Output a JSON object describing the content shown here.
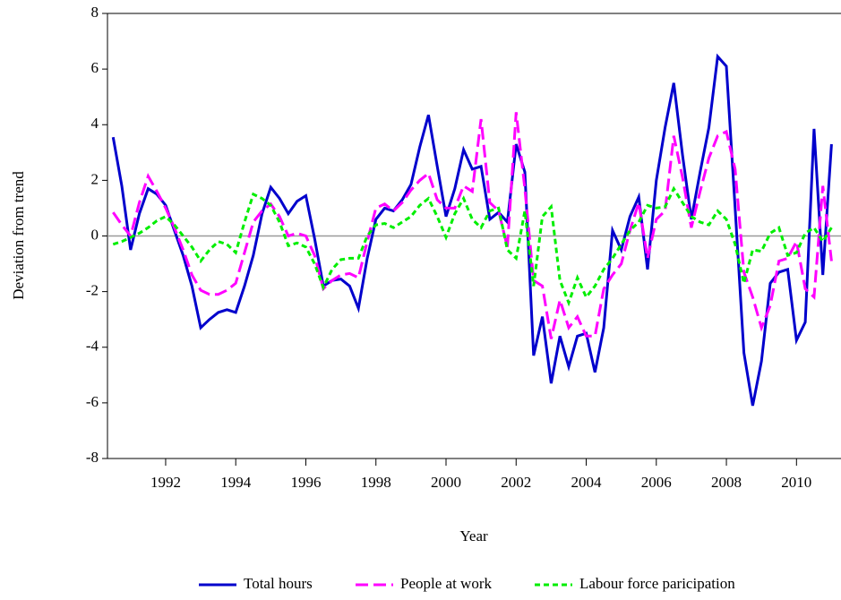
{
  "chart_data": {
    "type": "line",
    "y_label": "Deviation from trend",
    "x_label": "Year",
    "x": [
      1990.5,
      1990.75,
      1991,
      1991.25,
      1991.5,
      1991.75,
      1992,
      1992.25,
      1992.5,
      1992.75,
      1993,
      1993.25,
      1993.5,
      1993.75,
      1994,
      1994.25,
      1994.5,
      1994.75,
      1995,
      1995.25,
      1995.5,
      1995.75,
      1996,
      1996.25,
      1996.5,
      1996.75,
      1997,
      1997.25,
      1997.5,
      1997.75,
      1998,
      1998.25,
      1998.5,
      1998.75,
      1999,
      1999.25,
      1999.5,
      1999.75,
      2000,
      2000.25,
      2000.5,
      2000.75,
      2001,
      2001.25,
      2001.5,
      2001.75,
      2002,
      2002.25,
      2002.5,
      2002.75,
      2003,
      2003.25,
      2003.5,
      2003.75,
      2004,
      2004.25,
      2004.5,
      2004.75,
      2005,
      2005.25,
      2005.5,
      2005.75,
      2006,
      2006.25,
      2006.5,
      2006.75,
      2007,
      2007.25,
      2007.5,
      2007.75,
      2008,
      2008.25,
      2008.5,
      2008.75,
      2009,
      2009.25,
      2009.5,
      2009.75,
      2010,
      2010.25,
      2010.5,
      2010.75,
      2011
    ],
    "series": [
      {
        "name": "Total hours",
        "color": "#0000cc",
        "style": "solid",
        "values": [
          3.55,
          1.8,
          -0.5,
          0.8,
          1.7,
          1.5,
          1.1,
          0.2,
          -0.7,
          -1.8,
          -3.3,
          -3.0,
          -2.75,
          -2.65,
          -2.75,
          -1.8,
          -0.7,
          0.8,
          1.75,
          1.35,
          0.8,
          1.25,
          1.45,
          -0.1,
          -1.8,
          -1.6,
          -1.55,
          -1.8,
          -2.6,
          -0.8,
          0.6,
          1.0,
          0.9,
          1.3,
          1.85,
          3.2,
          4.35,
          2.5,
          0.7,
          1.7,
          3.1,
          2.4,
          2.5,
          0.6,
          0.85,
          0.5,
          3.3,
          2.3,
          -4.3,
          -2.9,
          -5.3,
          -3.6,
          -4.7,
          -3.6,
          -3.5,
          -4.9,
          -3.3,
          0.2,
          -0.5,
          0.7,
          1.4,
          -1.2,
          2.0,
          3.9,
          5.5,
          2.9,
          0.6,
          2.3,
          3.9,
          6.45,
          6.1,
          1.0,
          -4.2,
          -6.1,
          -4.5,
          -1.7,
          -1.3,
          -1.2,
          -3.75,
          -3.1,
          3.85,
          -1.4,
          3.3
        ]
      },
      {
        "name": "People at work",
        "color": "#ff00ff",
        "style": "dashed",
        "values": [
          0.85,
          0.4,
          0.0,
          1.2,
          2.15,
          1.6,
          1.0,
          0.3,
          -0.5,
          -1.4,
          -1.95,
          -2.1,
          -2.1,
          -1.95,
          -1.7,
          -0.6,
          0.5,
          0.9,
          1.15,
          0.7,
          0.0,
          0.1,
          0.0,
          -0.7,
          -1.9,
          -1.6,
          -1.4,
          -1.35,
          -1.5,
          -0.2,
          1.0,
          1.15,
          0.9,
          1.2,
          1.65,
          2.0,
          2.25,
          1.3,
          1.0,
          1.0,
          1.8,
          1.6,
          4.2,
          1.2,
          0.9,
          -0.4,
          4.45,
          1.7,
          -1.6,
          -1.8,
          -3.7,
          -2.3,
          -3.3,
          -2.9,
          -3.6,
          -3.6,
          -1.9,
          -1.4,
          -1.0,
          0.2,
          1.2,
          -0.8,
          0.6,
          0.9,
          3.6,
          2.1,
          0.3,
          1.6,
          2.8,
          3.6,
          3.75,
          2.4,
          -1.3,
          -2.2,
          -3.3,
          -2.5,
          -0.9,
          -0.8,
          -0.2,
          -1.9,
          -2.2,
          1.8,
          -0.9
        ]
      },
      {
        "name": "Labour force paricipation",
        "color": "#00ee00",
        "style": "dotted",
        "values": [
          -0.3,
          -0.2,
          -0.05,
          0.1,
          0.3,
          0.55,
          0.7,
          0.4,
          0.0,
          -0.4,
          -0.9,
          -0.5,
          -0.2,
          -0.3,
          -0.6,
          0.5,
          1.5,
          1.35,
          1.1,
          0.5,
          -0.35,
          -0.25,
          -0.4,
          -1.0,
          -1.85,
          -1.2,
          -0.85,
          -0.8,
          -0.8,
          0.0,
          0.4,
          0.45,
          0.3,
          0.5,
          0.7,
          1.1,
          1.35,
          0.7,
          -0.05,
          0.8,
          1.35,
          0.6,
          0.3,
          0.9,
          1.0,
          -0.5,
          -0.8,
          0.9,
          -1.8,
          0.7,
          1.05,
          -1.6,
          -2.4,
          -1.5,
          -2.2,
          -1.8,
          -1.2,
          -0.8,
          -0.3,
          0.2,
          0.5,
          1.1,
          1.0,
          1.05,
          1.7,
          1.2,
          0.7,
          0.5,
          0.4,
          0.9,
          0.6,
          -0.3,
          -1.7,
          -0.5,
          -0.55,
          0.1,
          0.3,
          -0.7,
          -0.6,
          0.1,
          0.3,
          -0.2,
          0.3
        ]
      }
    ],
    "xlim": [
      1990.34,
      2011.27
    ],
    "xticks": [
      1992,
      1994,
      1996,
      1998,
      2000,
      2002,
      2004,
      2006,
      2008,
      2010
    ],
    "ylim": [
      -8,
      8
    ],
    "yticks": [
      -8,
      -6,
      -4,
      -2,
      0,
      2,
      4,
      6,
      8
    ],
    "zero_line": true,
    "legend": "bottom"
  }
}
